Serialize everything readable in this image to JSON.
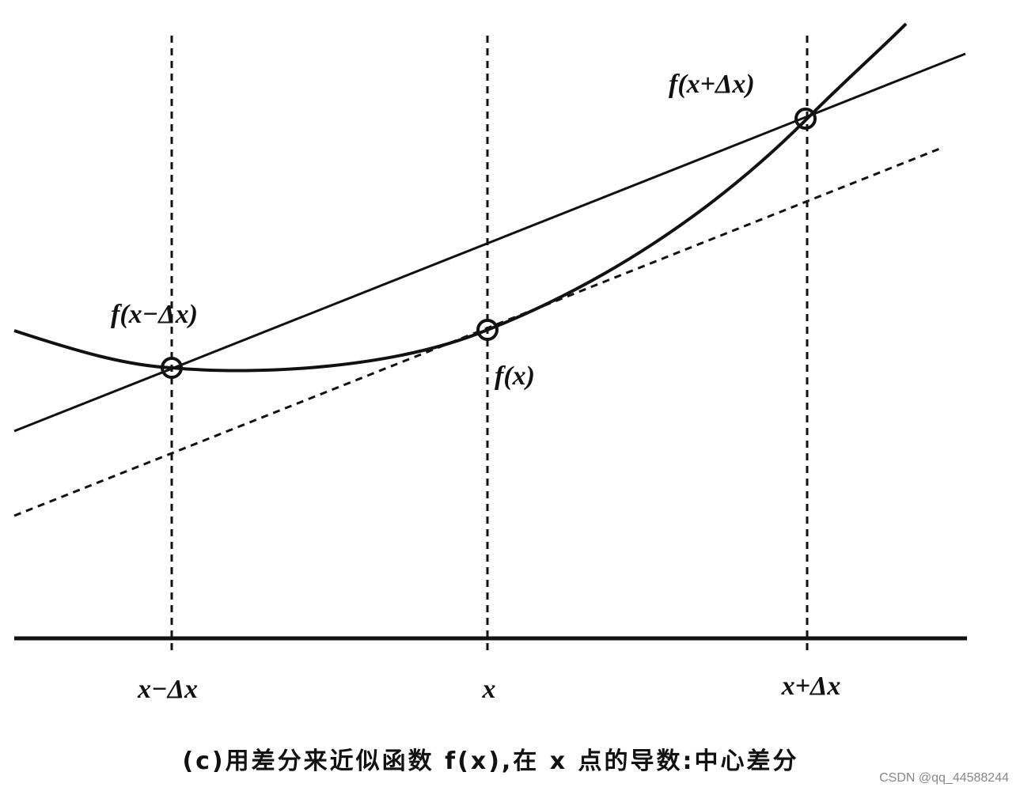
{
  "labels": {
    "point_left": "f(x−Δx)",
    "point_mid": "f(x)",
    "point_right": "f(x+Δx)"
  },
  "axis": {
    "left": "x−Δx",
    "mid": "x",
    "right": "x+Δx"
  },
  "caption": "(c)用差分来近似函数 f(x),在 x 点的导数:中心差分",
  "watermark": "CSDN @qq_44588244"
}
